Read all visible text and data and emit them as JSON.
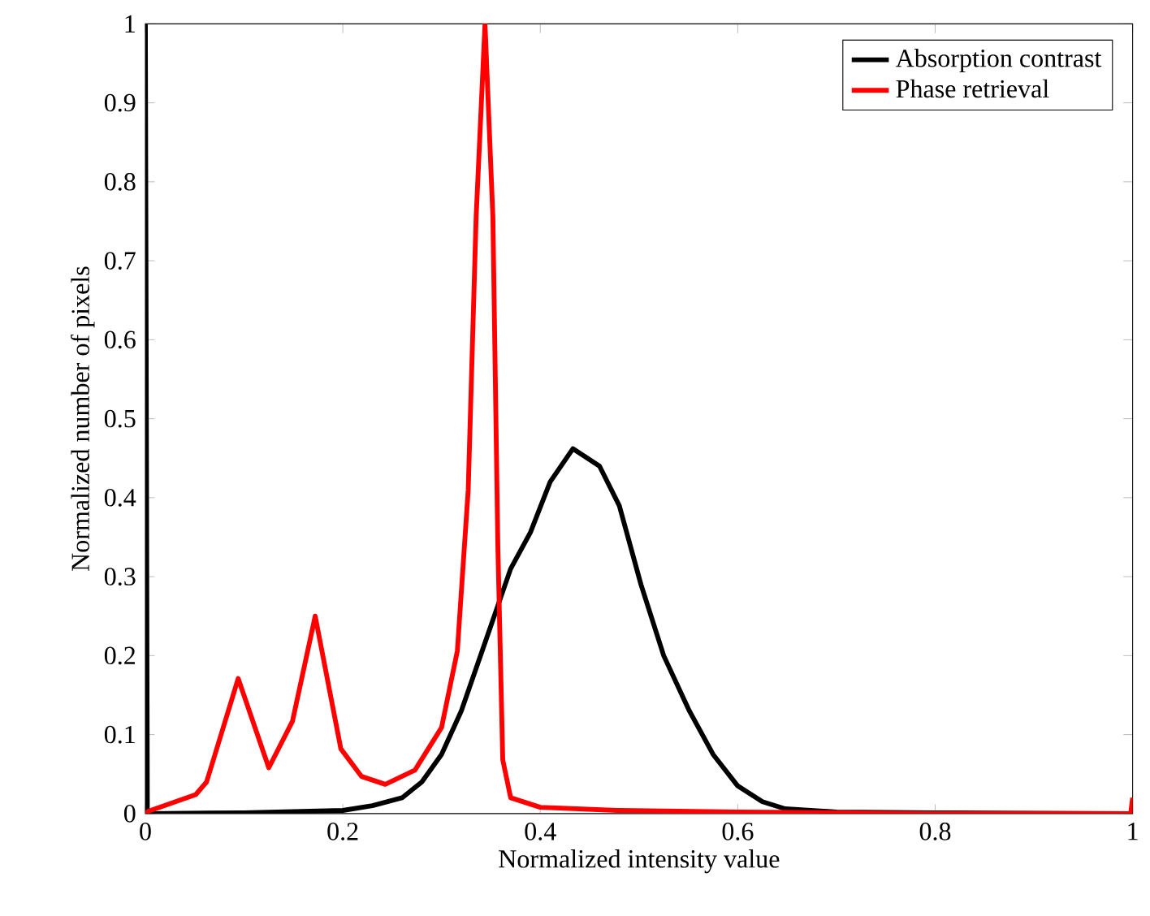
{
  "chart_data": {
    "type": "line",
    "xlabel": "Normalized intensity value",
    "ylabel": "Normalized number of pixels",
    "xlim": [
      0,
      1
    ],
    "ylim": [
      0,
      1
    ],
    "xticks": [
      0,
      0.2,
      0.4,
      0.6,
      0.8,
      1
    ],
    "yticks": [
      0,
      0.1,
      0.2,
      0.3,
      0.4,
      0.5,
      0.6,
      0.7,
      0.8,
      0.9,
      1
    ],
    "legend": "top right",
    "grid": false,
    "marker": "none",
    "line_style": "solid",
    "series": [
      {
        "name": "Absorption contrast",
        "color": "#000000",
        "x": [
          0,
          0.002,
          0.1,
          0.2,
          0.23,
          0.26,
          0.28,
          0.3,
          0.32,
          0.345,
          0.37,
          0.39,
          0.41,
          0.433,
          0.46,
          0.48,
          0.502,
          0.525,
          0.551,
          0.575,
          0.6,
          0.625,
          0.648,
          0.7,
          0.8,
          1
        ],
        "values": [
          1,
          0,
          0.001,
          0.004,
          0.01,
          0.02,
          0.04,
          0.075,
          0.13,
          0.22,
          0.31,
          0.356,
          0.42,
          0.462,
          0.44,
          0.39,
          0.29,
          0.2,
          0.13,
          0.075,
          0.035,
          0.015,
          0.006,
          0.002,
          0.001,
          0
        ]
      },
      {
        "name": "Phase retrieval",
        "color": "#ff0000",
        "x": [
          0,
          0.003,
          0.051,
          0.062,
          0.094,
          0.125,
          0.149,
          0.172,
          0.198,
          0.219,
          0.243,
          0.273,
          0.3,
          0.316,
          0.327,
          0.335,
          0.344,
          0.352,
          0.357,
          0.362,
          0.37,
          0.4,
          0.478,
          0.6,
          0.8,
          0.998,
          1
        ],
        "values": [
          0,
          0.003,
          0.024,
          0.04,
          0.171,
          0.058,
          0.117,
          0.25,
          0.082,
          0.047,
          0.037,
          0.055,
          0.109,
          0.206,
          0.41,
          0.755,
          1,
          0.755,
          0.34,
          0.068,
          0.02,
          0.008,
          0.004,
          0.002,
          0,
          0,
          0.02
        ]
      }
    ]
  }
}
